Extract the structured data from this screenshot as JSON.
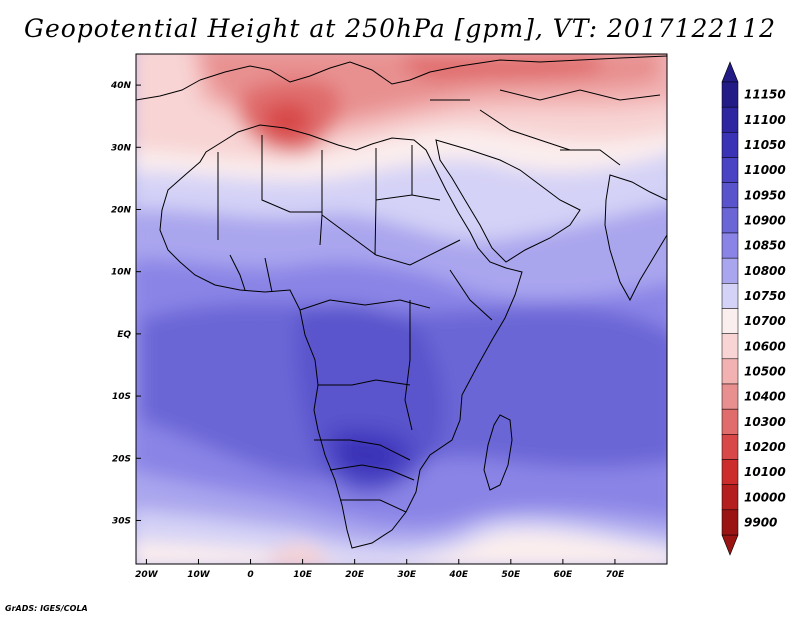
{
  "title": "Geopotential Height at 250hPa [gpm], VT: 2017122112",
  "footer": "GrADS: IGES/COLA",
  "map": {
    "variable": "Geopotential Height",
    "level": "250hPa",
    "units": "gpm",
    "valid_time": "2017122112",
    "lon_range": [
      -22,
      80
    ],
    "lat_range": [
      -37,
      45
    ],
    "lon_ticks": [
      {
        "value": -20,
        "label": "20W"
      },
      {
        "value": -10,
        "label": "10W"
      },
      {
        "value": 0,
        "label": "0"
      },
      {
        "value": 10,
        "label": "10E"
      },
      {
        "value": 20,
        "label": "20E"
      },
      {
        "value": 30,
        "label": "30E"
      },
      {
        "value": 40,
        "label": "40E"
      },
      {
        "value": 50,
        "label": "50E"
      },
      {
        "value": 60,
        "label": "60E"
      },
      {
        "value": 70,
        "label": "70E"
      }
    ],
    "lat_ticks": [
      {
        "value": 40,
        "label": "40N"
      },
      {
        "value": 30,
        "label": "30N"
      },
      {
        "value": 20,
        "label": "20N"
      },
      {
        "value": 10,
        "label": "10N"
      },
      {
        "value": 0,
        "label": "EQ"
      },
      {
        "value": -10,
        "label": "10S"
      },
      {
        "value": -20,
        "label": "20S"
      },
      {
        "value": -30,
        "label": "30S"
      }
    ]
  },
  "colorbar": {
    "levels": [
      {
        "label": "11150",
        "color": "#231c86"
      },
      {
        "label": "11100",
        "color": "#2d26a0"
      },
      {
        "label": "11050",
        "color": "#3a33b6"
      },
      {
        "label": "11000",
        "color": "#4a43c4"
      },
      {
        "label": "10950",
        "color": "#5a54cc"
      },
      {
        "label": "10900",
        "color": "#6b66d6"
      },
      {
        "label": "10850",
        "color": "#8a84e6"
      },
      {
        "label": "10800",
        "color": "#aaa6ee"
      },
      {
        "label": "10750",
        "color": "#d4d2f6"
      },
      {
        "label": "10700",
        "color": "#fbeeee"
      },
      {
        "label": "10600",
        "color": "#f8d4d4"
      },
      {
        "label": "10500",
        "color": "#f2b2b2"
      },
      {
        "label": "10400",
        "color": "#e89090"
      },
      {
        "label": "10300",
        "color": "#e06c6c"
      },
      {
        "label": "10200",
        "color": "#d84848"
      },
      {
        "label": "10100",
        "color": "#cc2c2c"
      },
      {
        "label": "10000",
        "color": "#b41e1e"
      },
      {
        "label": "9900",
        "color": "#9a1414"
      }
    ],
    "top_arrow_color": "#231c86",
    "bottom_arrow_color": "#9a1414"
  }
}
